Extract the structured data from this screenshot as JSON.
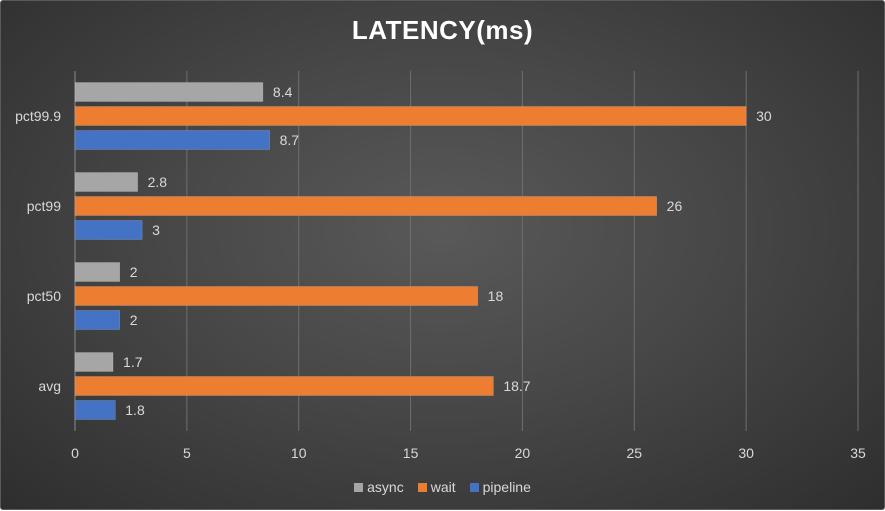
{
  "chart_data": {
    "type": "bar",
    "orientation": "horizontal",
    "title": "LATENCY(ms)",
    "xlabel": "",
    "ylabel": "",
    "categories": [
      "pct99.9",
      "pct99",
      "pct50",
      "avg"
    ],
    "series": [
      {
        "name": "async",
        "color": "#a6a6a6",
        "values": [
          8.4,
          2.8,
          2,
          1.7
        ],
        "labels": [
          "8.4",
          "2.8",
          "2",
          "1.7"
        ]
      },
      {
        "name": "wait",
        "color": "#ed7d31",
        "values": [
          30,
          26,
          18,
          18.7
        ],
        "labels": [
          "30",
          "26",
          "18",
          "18.7"
        ]
      },
      {
        "name": "pipeline",
        "color": "#4472c4",
        "values": [
          8.7,
          3,
          2,
          1.8
        ],
        "labels": [
          "8.7",
          "3",
          "2",
          "1.8"
        ]
      }
    ],
    "xlim": [
      0,
      35
    ],
    "xticks": [
      "0",
      "5",
      "10",
      "15",
      "20",
      "25",
      "30",
      "35"
    ],
    "grid": true,
    "legend_position": "bottom"
  }
}
